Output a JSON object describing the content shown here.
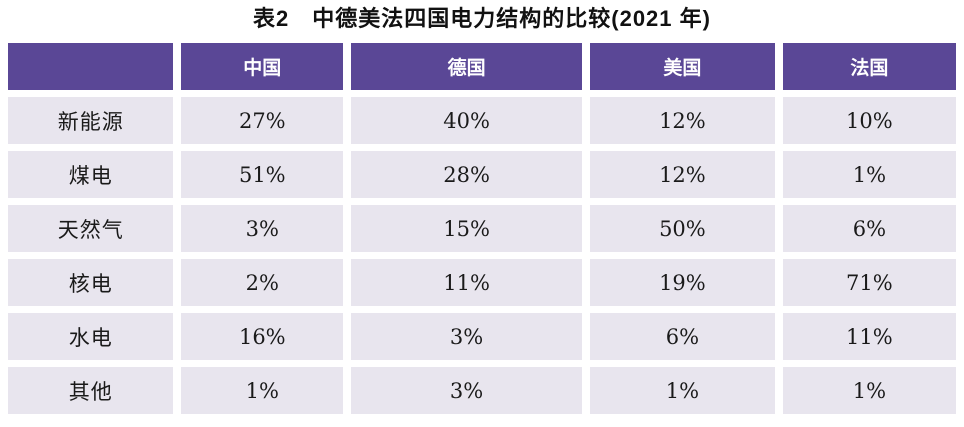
{
  "title": "表2　中德美法四国电力结构的比较(2021 年)",
  "colors": {
    "header_bg": "#5A4796",
    "header_text": "#FFFFFF",
    "cell_bg": "#E8E5EE",
    "cell_text": "#1A1A1A",
    "page_bg": "#FFFFFF"
  },
  "chart_data": {
    "type": "table",
    "title": "表2　中德美法四国电力结构的比较(2021 年)",
    "columns": [
      "",
      "中国",
      "德国",
      "美国",
      "法国"
    ],
    "column_ids": [
      "corner",
      "china",
      "germany",
      "usa",
      "france"
    ],
    "rows": [
      {
        "label": "新能源",
        "values": [
          "27%",
          "40%",
          "12%",
          "10%"
        ]
      },
      {
        "label": "煤电",
        "values": [
          "51%",
          "28%",
          "12%",
          "1%"
        ]
      },
      {
        "label": "天然气",
        "values": [
          "3%",
          "15%",
          "50%",
          "6%"
        ]
      },
      {
        "label": "核电",
        "values": [
          "2%",
          "11%",
          "19%",
          "71%"
        ]
      },
      {
        "label": "水电",
        "values": [
          "16%",
          "3%",
          "6%",
          "11%"
        ]
      },
      {
        "label": "其他",
        "values": [
          "1%",
          "3%",
          "1%",
          "1%"
        ]
      }
    ]
  }
}
